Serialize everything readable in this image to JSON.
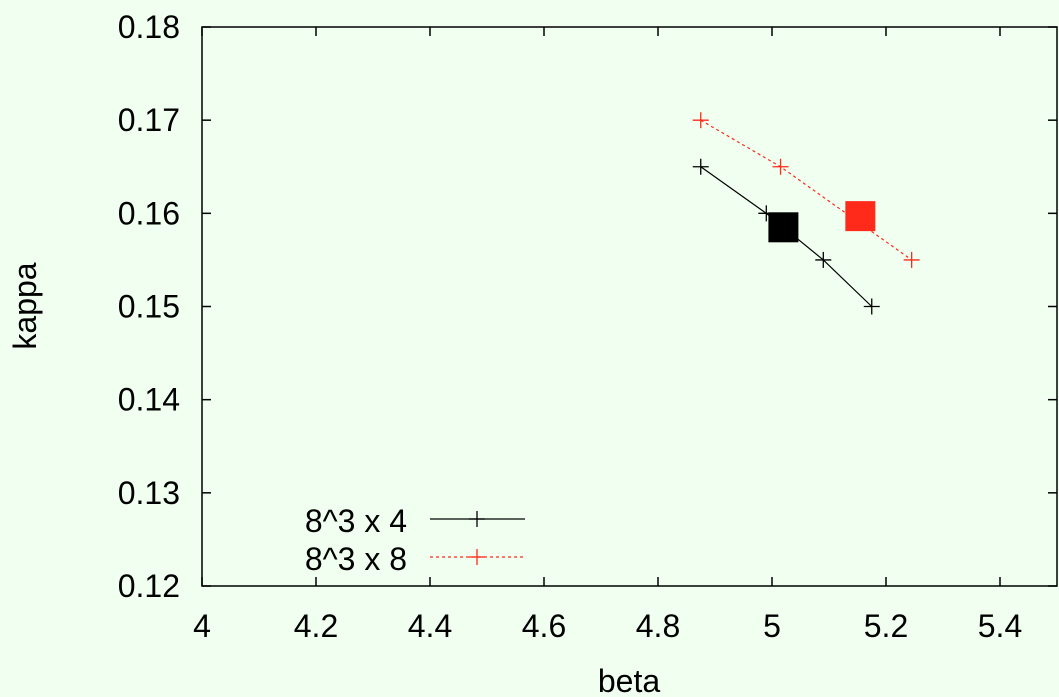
{
  "chart_data": {
    "type": "line",
    "title": "",
    "xlabel": "beta",
    "ylabel": "kappa",
    "xlim": [
      4.0,
      5.5
    ],
    "ylim": [
      0.12,
      0.18
    ],
    "xticks": [
      4.0,
      4.2,
      4.4,
      4.6,
      4.8,
      5.0,
      5.2,
      5.4
    ],
    "xtick_labels": [
      "4",
      "4.2",
      "4.4",
      "4.6",
      "4.8",
      "5",
      "5.2",
      "5.4"
    ],
    "yticks": [
      0.12,
      0.13,
      0.14,
      0.15,
      0.16,
      0.17,
      0.18
    ],
    "ytick_labels": [
      "0.12",
      "0.13",
      "0.14",
      "0.15",
      "0.16",
      "0.17",
      "0.18"
    ],
    "grid": false,
    "legend_position": "bottom-left",
    "series": [
      {
        "name": "8^3 x 4",
        "color": "#000000",
        "line_style": "solid",
        "marker": "plus",
        "x": [
          4.875,
          4.99,
          5.09,
          5.175
        ],
        "y": [
          0.165,
          0.16,
          0.155,
          0.15
        ]
      },
      {
        "name": "8^3 x 8",
        "color": "#ff2a1a",
        "line_style": "dotted",
        "marker": "plus",
        "x": [
          4.875,
          5.015,
          5.245
        ],
        "y": [
          0.17,
          0.165,
          0.155
        ]
      }
    ],
    "highlights": [
      {
        "series": "8^3 x 4",
        "color": "#000000",
        "marker": "filled-square",
        "x": 5.02,
        "y": 0.1585
      },
      {
        "series": "8^3 x 8",
        "color": "#ff2a1a",
        "marker": "filled-square",
        "x": 5.155,
        "y": 0.1597
      }
    ]
  }
}
